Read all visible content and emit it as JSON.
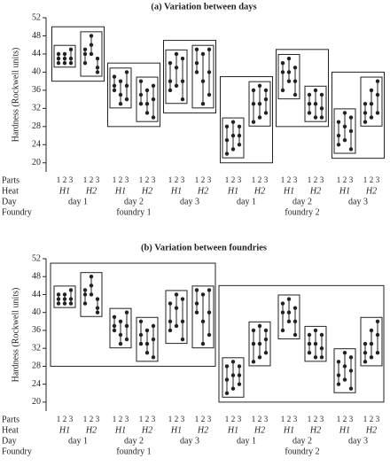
{
  "chart_data": [
    {
      "type": "multi-vari",
      "title": "(a) Variation between days",
      "y_label": "Hardness (Rockwell units)",
      "ylim": [
        18,
        52
      ],
      "yticks": [
        20,
        24,
        28,
        32,
        36,
        40,
        44,
        48,
        52
      ],
      "row_labels": [
        "Parts",
        "Heat",
        "Day",
        "Foundry"
      ],
      "parts": [
        "1",
        "2",
        "3"
      ],
      "boxes": [
        "heat",
        "day"
      ],
      "color": "#222222",
      "foundries": [
        {
          "name": "foundry 1",
          "days": [
            {
              "name": "day 1",
              "heats": [
                {
                  "name": "H1",
                  "parts": [
                    [
                      44,
                      43,
                      42
                    ],
                    [
                      44,
                      43,
                      42
                    ],
                    [
                      45,
                      43,
                      42
                    ]
                  ]
                },
                {
                  "name": "H2",
                  "parts": [
                    [
                      45,
                      44,
                      42
                    ],
                    [
                      48,
                      46,
                      44
                    ],
                    [
                      43,
                      41,
                      40
                    ]
                  ]
                }
              ]
            },
            {
              "name": "day 2",
              "heats": [
                {
                  "name": "H1",
                  "parts": [
                    [
                      39,
                      37,
                      36
                    ],
                    [
                      38,
                      35,
                      33
                    ],
                    [
                      40,
                      37,
                      34
                    ]
                  ]
                },
                {
                  "name": "H2",
                  "parts": [
                    [
                      38,
                      35,
                      33
                    ],
                    [
                      36,
                      33,
                      31
                    ],
                    [
                      37,
                      34,
                      30
                    ]
                  ]
                }
              ]
            },
            {
              "name": "day 3",
              "heats": [
                {
                  "name": "H1",
                  "parts": [
                    [
                      42,
                      38,
                      36
                    ],
                    [
                      44,
                      41,
                      37
                    ],
                    [
                      43,
                      38,
                      34
                    ]
                  ]
                },
                {
                  "name": "H2",
                  "parts": [
                    [
                      45,
                      42,
                      40
                    ],
                    [
                      44,
                      38,
                      33
                    ],
                    [
                      45,
                      40,
                      35
                    ]
                  ]
                }
              ]
            }
          ]
        },
        {
          "name": "foundry 2",
          "days": [
            {
              "name": "day 1",
              "heats": [
                {
                  "name": "H1",
                  "parts": [
                    [
                      28,
                      25,
                      22
                    ],
                    [
                      29,
                      26,
                      23
                    ],
                    [
                      28,
                      26,
                      24
                    ]
                  ]
                },
                {
                  "name": "H2",
                  "parts": [
                    [
                      36,
                      33,
                      29
                    ],
                    [
                      37,
                      33,
                      30
                    ],
                    [
                      36,
                      34,
                      31
                    ]
                  ]
                }
              ]
            },
            {
              "name": "day 2",
              "heats": [
                {
                  "name": "H1",
                  "parts": [
                    [
                      42,
                      40,
                      36
                    ],
                    [
                      43,
                      40,
                      38
                    ],
                    [
                      41,
                      38,
                      35
                    ]
                  ]
                },
                {
                  "name": "H2",
                  "parts": [
                    [
                      35,
                      33,
                      31
                    ],
                    [
                      36,
                      33,
                      30
                    ],
                    [
                      35,
                      32,
                      30
                    ]
                  ]
                }
              ]
            },
            {
              "name": "day 3",
              "heats": [
                {
                  "name": "H1",
                  "parts": [
                    [
                      29,
                      26,
                      24
                    ],
                    [
                      31,
                      28,
                      25
                    ],
                    [
                      30,
                      27,
                      23
                    ]
                  ]
                },
                {
                  "name": "H2",
                  "parts": [
                    [
                      33,
                      31,
                      29
                    ],
                    [
                      36,
                      33,
                      30
                    ],
                    [
                      38,
                      35,
                      31
                    ]
                  ]
                }
              ]
            }
          ]
        }
      ]
    },
    {
      "type": "multi-vari",
      "title": "(b) Variation between foundries",
      "y_label": "Hardness (Rockwell units)",
      "ylim": [
        18,
        52
      ],
      "yticks": [
        20,
        24,
        28,
        32,
        36,
        40,
        44,
        48,
        52
      ],
      "row_labels": [
        "Parts",
        "Heat",
        "Day",
        "Foundry"
      ],
      "parts": [
        "1",
        "2",
        "3"
      ],
      "boxes": [
        "heat",
        "foundry"
      ],
      "color": "#222222",
      "foundries": [
        {
          "name": "foundry 1",
          "days": [
            {
              "name": "day 1",
              "heats": [
                {
                  "name": "H1",
                  "parts": [
                    [
                      44,
                      43,
                      42
                    ],
                    [
                      44,
                      43,
                      42
                    ],
                    [
                      45,
                      43,
                      42
                    ]
                  ]
                },
                {
                  "name": "H2",
                  "parts": [
                    [
                      45,
                      44,
                      42
                    ],
                    [
                      48,
                      46,
                      44
                    ],
                    [
                      43,
                      41,
                      40
                    ]
                  ]
                }
              ]
            },
            {
              "name": "day 2",
              "heats": [
                {
                  "name": "H1",
                  "parts": [
                    [
                      39,
                      37,
                      36
                    ],
                    [
                      38,
                      35,
                      33
                    ],
                    [
                      40,
                      37,
                      34
                    ]
                  ]
                },
                {
                  "name": "H2",
                  "parts": [
                    [
                      38,
                      35,
                      33
                    ],
                    [
                      36,
                      33,
                      31
                    ],
                    [
                      37,
                      34,
                      30
                    ]
                  ]
                }
              ]
            },
            {
              "name": "day 3",
              "heats": [
                {
                  "name": "H1",
                  "parts": [
                    [
                      42,
                      38,
                      36
                    ],
                    [
                      44,
                      41,
                      37
                    ],
                    [
                      43,
                      38,
                      34
                    ]
                  ]
                },
                {
                  "name": "H2",
                  "parts": [
                    [
                      45,
                      42,
                      40
                    ],
                    [
                      44,
                      38,
                      33
                    ],
                    [
                      45,
                      40,
                      35
                    ]
                  ]
                }
              ]
            }
          ]
        },
        {
          "name": "foundry 2",
          "days": [
            {
              "name": "day 1",
              "heats": [
                {
                  "name": "H1",
                  "parts": [
                    [
                      28,
                      25,
                      22
                    ],
                    [
                      29,
                      26,
                      23
                    ],
                    [
                      28,
                      26,
                      24
                    ]
                  ]
                },
                {
                  "name": "H2",
                  "parts": [
                    [
                      36,
                      33,
                      29
                    ],
                    [
                      37,
                      33,
                      30
                    ],
                    [
                      36,
                      34,
                      31
                    ]
                  ]
                }
              ]
            },
            {
              "name": "day 2",
              "heats": [
                {
                  "name": "H1",
                  "parts": [
                    [
                      42,
                      40,
                      36
                    ],
                    [
                      43,
                      40,
                      38
                    ],
                    [
                      41,
                      38,
                      35
                    ]
                  ]
                },
                {
                  "name": "H2",
                  "parts": [
                    [
                      35,
                      33,
                      31
                    ],
                    [
                      36,
                      33,
                      30
                    ],
                    [
                      35,
                      32,
                      30
                    ]
                  ]
                }
              ]
            },
            {
              "name": "day 3",
              "heats": [
                {
                  "name": "H1",
                  "parts": [
                    [
                      29,
                      26,
                      24
                    ],
                    [
                      31,
                      28,
                      25
                    ],
                    [
                      30,
                      27,
                      23
                    ]
                  ]
                },
                {
                  "name": "H2",
                  "parts": [
                    [
                      33,
                      31,
                      29
                    ],
                    [
                      36,
                      33,
                      30
                    ],
                    [
                      38,
                      35,
                      31
                    ]
                  ]
                }
              ]
            }
          ]
        }
      ]
    }
  ]
}
